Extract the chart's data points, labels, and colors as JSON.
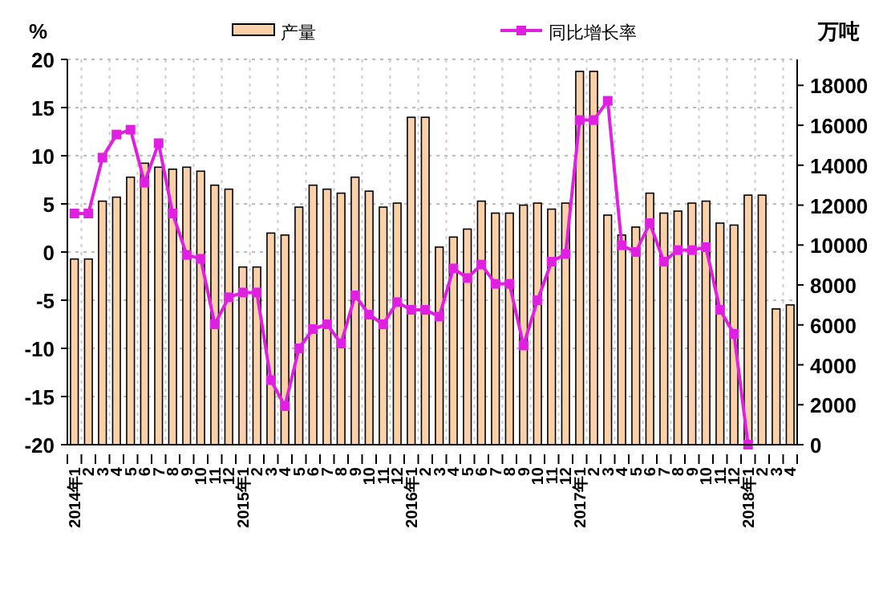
{
  "chart_data": {
    "type": "bar",
    "legend": "top",
    "grid": true,
    "marker": "square",
    "ylabel": "%",
    "y2label": "万吨",
    "ylim": [
      -20,
      20
    ],
    "yticks": [
      -20,
      -15,
      -10,
      -5,
      0,
      5,
      10,
      15,
      20
    ],
    "y2lim": [
      0,
      19300
    ],
    "y2ticks": [
      0,
      2000,
      4000,
      6000,
      8000,
      10000,
      12000,
      14000,
      16000,
      18000
    ],
    "categories": [
      "2014年1",
      "2",
      "3",
      "4",
      "5",
      "6",
      "7",
      "8",
      "9",
      "10",
      "11",
      "12",
      "2015年1",
      "2",
      "3",
      "4",
      "5",
      "6",
      "7",
      "8",
      "9",
      "10",
      "11",
      "12",
      "2016年1",
      "2",
      "3",
      "4",
      "5",
      "6",
      "7",
      "8",
      "9",
      "10",
      "11",
      "12",
      "2017年1",
      "2",
      "3",
      "4",
      "5",
      "6",
      "7",
      "8",
      "9",
      "10",
      "11",
      "12",
      "2018年1",
      "2",
      "3",
      "4"
    ],
    "series": [
      {
        "name": "产量",
        "axis": "y2",
        "color": "#f9d0a8",
        "values": [
          9300,
          9300,
          12200,
          12400,
          13400,
          14100,
          13900,
          13800,
          13900,
          13700,
          13000,
          12800,
          8900,
          8900,
          10600,
          10500,
          11900,
          13000,
          12800,
          12600,
          13400,
          12700,
          11900,
          12100,
          16400,
          16400,
          9900,
          10400,
          10800,
          12200,
          11600,
          11600,
          12000,
          12100,
          11800,
          12100,
          18700,
          18700,
          11500,
          10500,
          10900,
          12600,
          11600,
          11700,
          12100,
          12200,
          11100,
          11000,
          12500,
          12500,
          6800,
          7000
        ]
      },
      {
        "name": "同比增长率",
        "type": "line",
        "axis": "y",
        "color": "#e020e0",
        "values": [
          4.0,
          4.0,
          9.8,
          12.2,
          12.7,
          7.2,
          11.3,
          4.0,
          -0.3,
          -0.7,
          -7.5,
          -4.7,
          -4.2,
          -4.2,
          -13.3,
          -16.0,
          -10.0,
          -8.0,
          -7.5,
          -9.5,
          -4.5,
          -6.5,
          -7.5,
          -5.2,
          -6.0,
          -6.0,
          -6.7,
          -1.7,
          -2.7,
          -1.3,
          -3.3,
          -3.3,
          -9.7,
          -5.0,
          -1.0,
          -0.2,
          13.7,
          13.7,
          15.7,
          0.7,
          0.0,
          3.0,
          -1.0,
          0.2,
          0.2,
          0.5,
          -6.0,
          -8.5,
          -20,
          null,
          null,
          null
        ]
      }
    ]
  }
}
